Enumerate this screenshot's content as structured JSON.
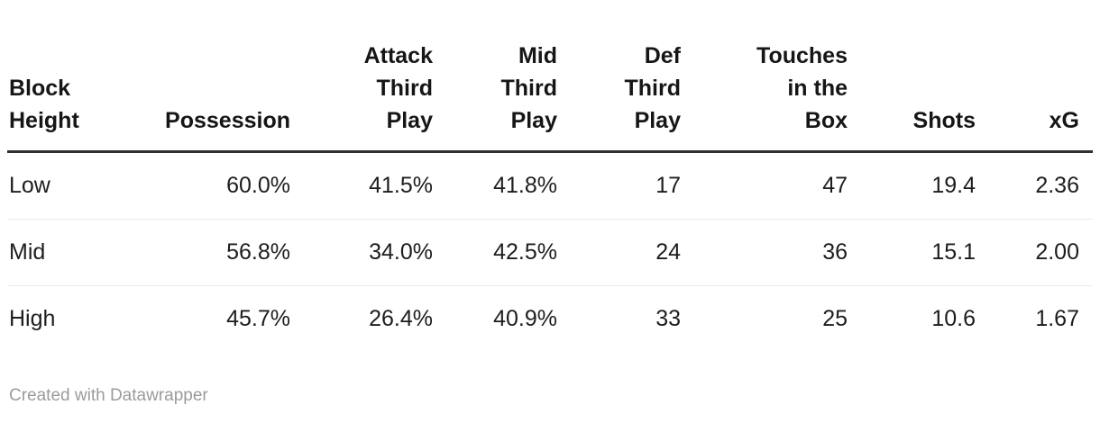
{
  "table": {
    "header": {
      "columns": [
        {
          "lines": [
            "Block",
            "Height"
          ]
        },
        {
          "lines": [
            "Possession"
          ]
        },
        {
          "lines": [
            "Attack",
            "Third",
            "Play"
          ]
        },
        {
          "lines": [
            "Mid",
            "Third",
            "Play"
          ]
        },
        {
          "lines": [
            "Def",
            "Third",
            "Play"
          ]
        },
        {
          "lines": [
            "Touches",
            "in the",
            "Box"
          ]
        },
        {
          "lines": [
            "Shots"
          ]
        },
        {
          "lines": [
            "xG"
          ]
        }
      ]
    },
    "rows": [
      {
        "cells": [
          "Low",
          "60.0%",
          "41.5%",
          "41.8%",
          "17",
          "47",
          "19.4",
          "2.36"
        ]
      },
      {
        "cells": [
          "Mid",
          "56.8%",
          "34.0%",
          "42.5%",
          "24",
          "36",
          "15.1",
          "2.00"
        ]
      },
      {
        "cells": [
          "High",
          "45.7%",
          "26.4%",
          "40.9%",
          "33",
          "25",
          "10.6",
          "1.67"
        ]
      }
    ]
  },
  "footer": {
    "credit": "Created with Datawrapper"
  },
  "colors": {
    "header_text": "#161616",
    "body_text": "#1d1d1d",
    "header_rule": "#2f2f2f",
    "row_divider": "#e9e9e9",
    "credit_text": "#9b9b9b",
    "background": "#ffffff"
  },
  "chart_data": {
    "type": "table",
    "columns": [
      "Block Height",
      "Possession",
      "Attack Third Play",
      "Mid Third Play",
      "Def Third Play",
      "Touches in the Box",
      "Shots",
      "xG"
    ],
    "rows": [
      [
        "Low",
        "60.0%",
        "41.5%",
        "41.8%",
        17,
        47,
        19.4,
        2.36
      ],
      [
        "Mid",
        "56.8%",
        "34.0%",
        "42.5%",
        24,
        36,
        15.1,
        2.0
      ],
      [
        "High",
        "45.7%",
        "26.4%",
        "40.9%",
        33,
        25,
        10.6,
        1.67
      ]
    ],
    "title": "",
    "legend_position": "none",
    "grid": "horizontal-dividers"
  }
}
